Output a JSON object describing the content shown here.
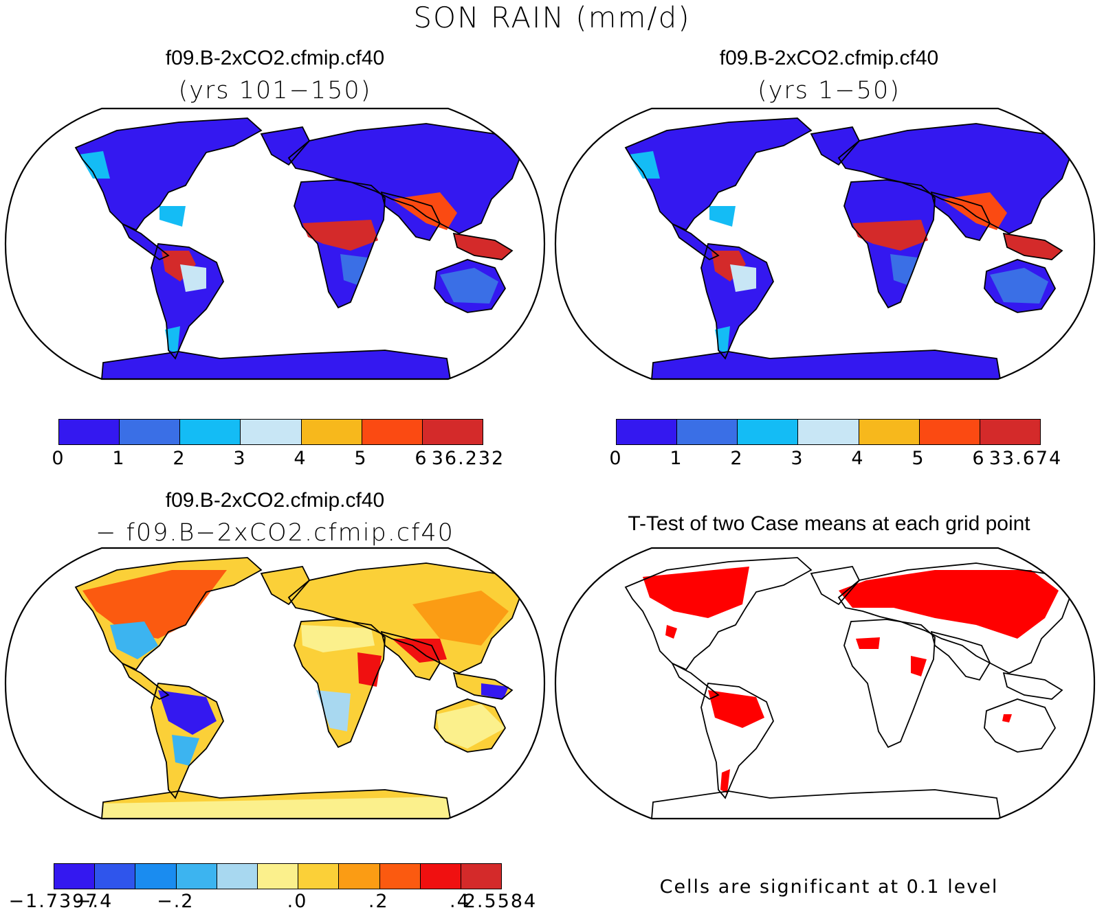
{
  "figure": {
    "main_title": "SON RAIN (mm/d)",
    "note": "Cells are significant at 0.1 level"
  },
  "panels": [
    {
      "id": "top-left",
      "title": "f09.B-2xCO2.cfmip.cf40",
      "subtitle": "(yrs 101−150)",
      "colorbar": {
        "colors": [
          "#3418f0",
          "#3a6fe6",
          "#14bcf5",
          "#c8e6f5",
          "#f7b81c",
          "#fb4a12",
          "#d42a2a"
        ],
        "labels": [
          "0",
          "1",
          "2",
          "3",
          "4",
          "5",
          "6",
          "36.232"
        ]
      }
    },
    {
      "id": "top-right",
      "title": "f09.B-2xCO2.cfmip.cf40",
      "subtitle": "(yrs 1−50)",
      "colorbar": {
        "colors": [
          "#3418f0",
          "#3a6fe6",
          "#14bcf5",
          "#c8e6f5",
          "#f7b81c",
          "#fb4a12",
          "#d42a2a"
        ],
        "labels": [
          "0",
          "1",
          "2",
          "3",
          "4",
          "5",
          "6",
          "33.674"
        ]
      }
    },
    {
      "id": "bottom-left",
      "title": "f09.B-2xCO2.cfmip.cf40",
      "subtitle": "− f09.B−2xCO2.cfmip.cf40",
      "colorbar": {
        "colors": [
          "#3418f0",
          "#2f55ec",
          "#1a8cf0",
          "#3cb4f0",
          "#a8d8f0",
          "#fbf08c",
          "#fbd038",
          "#fb9c14",
          "#fb5a10",
          "#f01010",
          "#d42a2a"
        ],
        "labels": [
          "−1.7397",
          "−.4",
          "−.2",
          ".0",
          ".2",
          ".4",
          "2.5584"
        ]
      }
    },
    {
      "id": "bottom-right",
      "title": "T-Test of two Case means at each grid point"
    }
  ],
  "palette": {
    "land_dry": "#3418f0",
    "land_wet": "#d42a2a",
    "significant": "#ff0000",
    "diff_pos": "#fb9c14",
    "diff_neg": "#3a6fe6",
    "diff_neutral": "#fbf08c"
  }
}
